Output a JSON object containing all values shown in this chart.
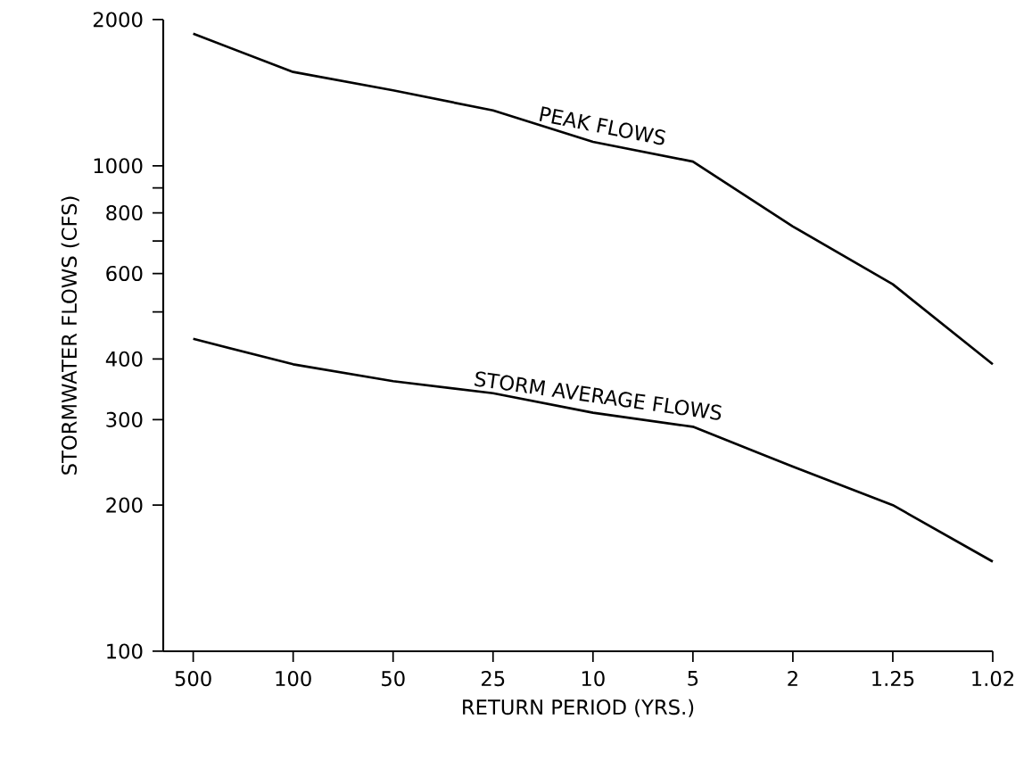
{
  "chart_data": {
    "type": "line",
    "xlabel": "RETURN PERIOD (YRS.)",
    "ylabel": "STORMWATER FLOWS (CFS)",
    "categories": [
      "500",
      "100",
      "50",
      "25",
      "10",
      "5",
      "2",
      "1.25",
      "1.02"
    ],
    "series": [
      {
        "name": "PEAK FLOWS",
        "color": "#000000",
        "values": [
          1870,
          1560,
          1430,
          1300,
          1120,
          1020,
          750,
          570,
          390
        ]
      },
      {
        "name": "STORM AVERAGE FLOWS",
        "color": "#000000",
        "values": [
          440,
          390,
          360,
          340,
          310,
          290,
          240,
          200,
          153
        ]
      }
    ],
    "ylim": [
      100,
      2000
    ],
    "yticks": [
      100,
      200,
      300,
      400,
      {
        "value": 500,
        "label": null
      },
      600,
      {
        "value": 700,
        "label": null
      },
      800,
      {
        "value": 900,
        "label": null
      },
      1000,
      2000
    ],
    "log": "y",
    "grid": false,
    "legend": false,
    "marker": "none",
    "line_style": "solid"
  }
}
